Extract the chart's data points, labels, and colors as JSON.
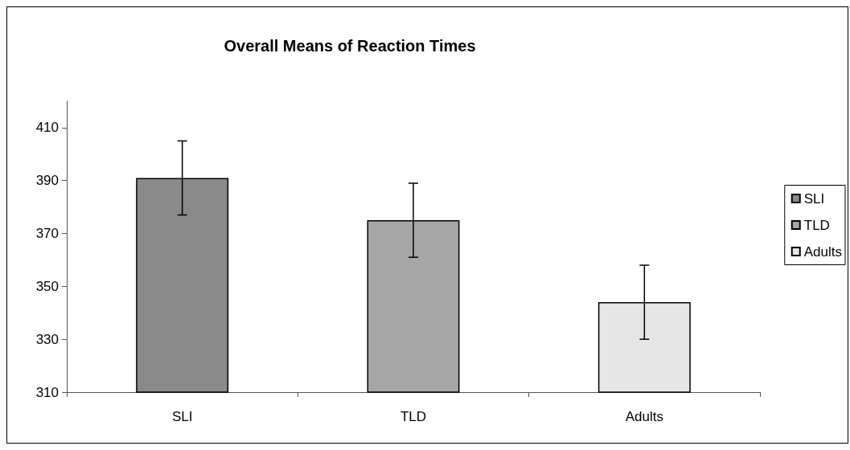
{
  "chart_data": {
    "type": "bar",
    "title": "Overall Means of Reaction Times",
    "categories": [
      "SLI",
      "TLD",
      "Adults"
    ],
    "series": [
      {
        "name": "SLI",
        "color": "#8a8a8a",
        "values": [
          391,
          null,
          null
        ],
        "errors": [
          14,
          null,
          null
        ]
      },
      {
        "name": "TLD",
        "color": "#a6a6a6",
        "values": [
          null,
          375,
          null
        ],
        "errors": [
          null,
          14,
          null
        ]
      },
      {
        "name": "Adults",
        "color": "#e6e6e6",
        "values": [
          null,
          null,
          344
        ],
        "errors": [
          null,
          null,
          14
        ]
      }
    ],
    "ylim": [
      310,
      420
    ],
    "yticks": [
      310,
      330,
      350,
      370,
      390,
      410
    ],
    "grid": false,
    "legend": "right"
  }
}
